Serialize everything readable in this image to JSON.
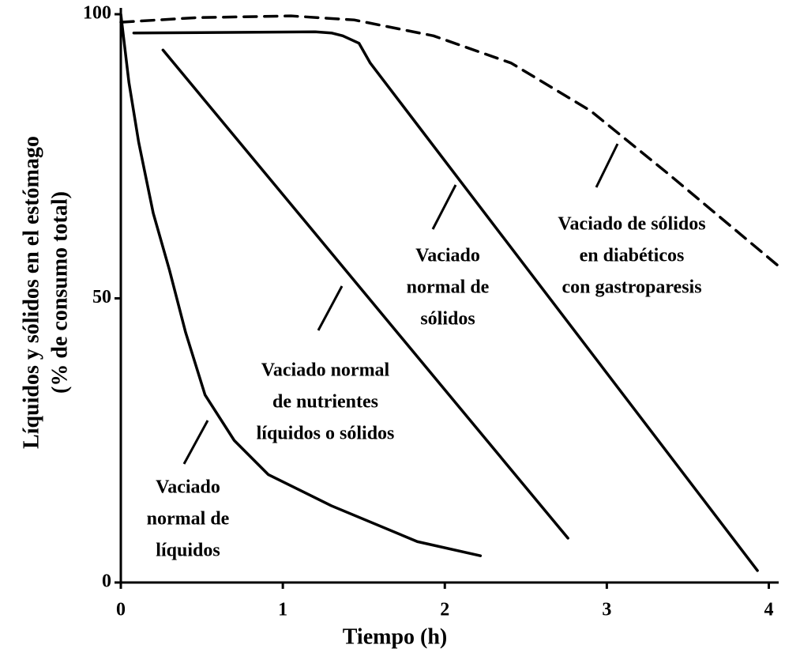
{
  "chart_data": {
    "type": "line",
    "x_label": "Tiempo (h)",
    "y_label": [
      "Líquidos y sólidos en el estómago",
      "(% de consumo total)"
    ],
    "xlim": [
      0,
      4.1
    ],
    "ylim": [
      0,
      100
    ],
    "xticks": [
      0,
      1,
      2,
      3,
      4
    ],
    "yticks": [
      0,
      50,
      100
    ],
    "series": [
      {
        "color": "#000000",
        "dash": false,
        "x": [
          0,
          0.05,
          0.11,
          0.2,
          0.3,
          0.4,
          0.52,
          0.7,
          0.91,
          1.3,
          1.83,
          2.22
        ],
        "values": [
          100,
          88,
          77.5,
          65,
          55,
          44,
          33,
          25,
          19,
          13.5,
          7.2,
          4.7
        ]
      },
      {
        "color": "#000000",
        "dash": false,
        "x": [
          0.26,
          2.76
        ],
        "values": [
          93.7,
          7.8
        ]
      },
      {
        "color": "#000000",
        "dash": false,
        "x": [
          0.08,
          1.2,
          1.3,
          1.37,
          1.47,
          1.54,
          3.93
        ],
        "values": [
          96.7,
          96.9,
          96.7,
          96.2,
          94.9,
          91.4,
          2.1
        ]
      },
      {
        "color": "#000000",
        "dash": true,
        "x": [
          0,
          0.47,
          1.05,
          1.44,
          1.93,
          2.41,
          2.9,
          3.38,
          4.08
        ],
        "values": [
          98.6,
          99.4,
          99.7,
          99,
          96.2,
          91.4,
          83,
          71.9,
          55.2
        ]
      }
    ],
    "annotations": [
      {
        "lines": [
          "Vaciado",
          "normal de",
          "líquidos"
        ]
      },
      {
        "lines": [
          "Vaciado normal",
          "de  nutrientes",
          "líquidos o sólidos"
        ]
      },
      {
        "lines": [
          "Vaciado",
          "normal de",
          "sólidos"
        ]
      },
      {
        "lines": [
          "Vaciado de sólidos",
          "en  diabéticos",
          "con gastroparesis"
        ]
      }
    ]
  }
}
